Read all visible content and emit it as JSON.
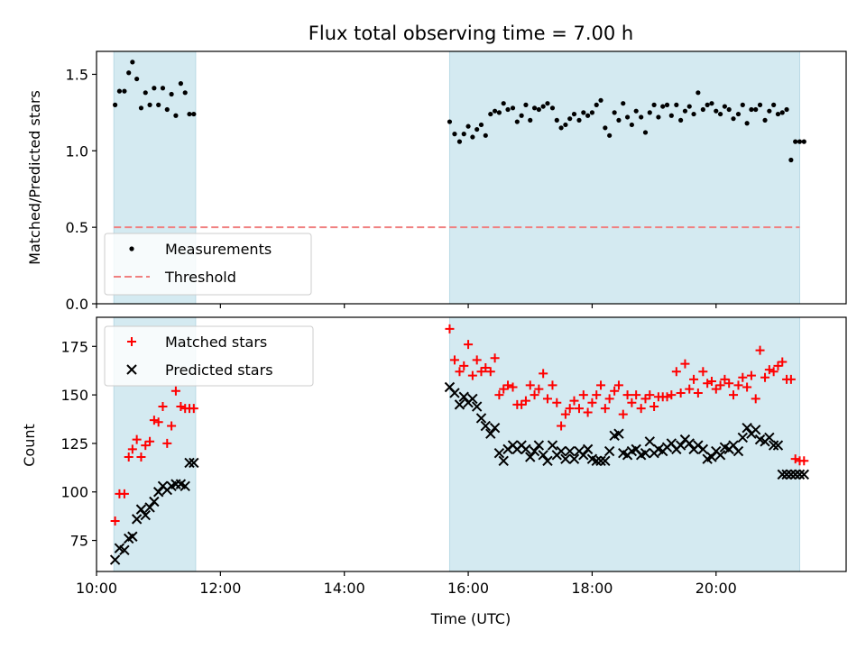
{
  "chart_data": {
    "title": "Flux total observing time = 7.00 h",
    "xlabel": "Time (UTC)",
    "x_unit": "hours (UTC)",
    "xlim": [
      10.0,
      22.1
    ],
    "x_ticks": [
      {
        "value": 10,
        "label": "10:00"
      },
      {
        "value": 12,
        "label": "12:00"
      },
      {
        "value": 14,
        "label": "14:00"
      },
      {
        "value": 16,
        "label": "16:00"
      },
      {
        "value": 18,
        "label": "18:00"
      },
      {
        "value": 20,
        "label": "20:00"
      }
    ],
    "observing_windows": [
      {
        "start": 10.28,
        "end": 11.6,
        "color": "#d4eaf1"
      },
      {
        "start": 15.7,
        "end": 21.35,
        "color": "#d4eaf1"
      }
    ],
    "panels": [
      {
        "type": "scatter",
        "ylabel": "Matched/Predicted stars",
        "ylim": [
          0,
          1.65
        ],
        "y_ticks": [
          0.0,
          0.5,
          1.0,
          1.5
        ],
        "y_tick_labels": [
          "0.0",
          "0.5",
          "1.0",
          "1.5"
        ],
        "legend_position": "lower-left",
        "series": [
          {
            "name": "Measurements",
            "marker": "dot",
            "color": "#000000",
            "x": [
              10.3,
              10.37,
              10.45,
              10.52,
              10.58,
              10.65,
              10.72,
              10.79,
              10.86,
              10.93,
              11.0,
              11.07,
              11.14,
              11.21,
              11.28,
              11.36,
              11.43,
              11.5,
              11.57,
              15.7,
              15.78,
              15.86,
              15.93,
              16.0,
              16.07,
              16.14,
              16.21,
              16.28,
              16.36,
              16.43,
              16.5,
              16.57,
              16.64,
              16.72,
              16.79,
              16.86,
              16.93,
              17.0,
              17.07,
              17.14,
              17.21,
              17.28,
              17.36,
              17.43,
              17.5,
              17.57,
              17.64,
              17.71,
              17.79,
              17.86,
              17.93,
              18.0,
              18.07,
              18.14,
              18.21,
              18.28,
              18.36,
              18.43,
              18.5,
              18.57,
              18.64,
              18.71,
              18.79,
              18.86,
              18.93,
              19.0,
              19.07,
              19.14,
              19.21,
              19.28,
              19.36,
              19.43,
              19.5,
              19.57,
              19.64,
              19.71,
              19.79,
              19.86,
              19.93,
              20.0,
              20.07,
              20.14,
              20.21,
              20.28,
              20.36,
              20.43,
              20.5,
              20.57,
              20.64,
              20.71,
              20.79,
              20.86,
              20.93,
              21.0,
              21.07,
              21.14,
              21.21,
              21.28,
              21.35,
              21.42
            ],
            "y": [
              1.3,
              1.39,
              1.39,
              1.51,
              1.58,
              1.47,
              1.28,
              1.38,
              1.3,
              1.41,
              1.3,
              1.41,
              1.27,
              1.37,
              1.23,
              1.44,
              1.38,
              1.24,
              1.24,
              1.19,
              1.11,
              1.06,
              1.11,
              1.16,
              1.09,
              1.14,
              1.17,
              1.1,
              1.24,
              1.26,
              1.25,
              1.31,
              1.27,
              1.28,
              1.19,
              1.23,
              1.3,
              1.2,
              1.28,
              1.27,
              1.29,
              1.31,
              1.28,
              1.2,
              1.15,
              1.17,
              1.21,
              1.24,
              1.2,
              1.25,
              1.23,
              1.25,
              1.3,
              1.33,
              1.15,
              1.1,
              1.25,
              1.2,
              1.31,
              1.22,
              1.17,
              1.26,
              1.22,
              1.12,
              1.25,
              1.3,
              1.22,
              1.29,
              1.3,
              1.23,
              1.3,
              1.2,
              1.26,
              1.29,
              1.24,
              1.38,
              1.27,
              1.3,
              1.31,
              1.26,
              1.24,
              1.29,
              1.27,
              1.21,
              1.24,
              1.3,
              1.18,
              1.27,
              1.27,
              1.3,
              1.2,
              1.26,
              1.3,
              1.24,
              1.25,
              1.27,
              0.94,
              1.06,
              1.06,
              1.06
            ]
          },
          {
            "name": "Threshold",
            "marker": "dashed-line",
            "color": "#f08080",
            "x": [
              10.28,
              21.35
            ],
            "y": [
              0.5,
              0.5
            ]
          }
        ]
      },
      {
        "type": "scatter",
        "ylabel": "Count",
        "ylim": [
          59,
          190
        ],
        "y_ticks": [
          75,
          100,
          125,
          150,
          175
        ],
        "y_tick_labels": [
          "75",
          "100",
          "125",
          "150",
          "175"
        ],
        "legend_position": "upper-left",
        "series": [
          {
            "name": "Matched stars",
            "marker": "plus",
            "color": "#ff0000",
            "x": [
              10.3,
              10.37,
              10.45,
              10.52,
              10.58,
              10.65,
              10.72,
              10.79,
              10.86,
              10.93,
              11.0,
              11.07,
              11.14,
              11.21,
              11.28,
              11.36,
              11.43,
              11.5,
              11.57,
              15.7,
              15.78,
              15.86,
              15.93,
              16.0,
              16.07,
              16.14,
              16.21,
              16.28,
              16.36,
              16.43,
              16.5,
              16.57,
              16.64,
              16.72,
              16.79,
              16.86,
              16.93,
              17.0,
              17.07,
              17.14,
              17.21,
              17.28,
              17.36,
              17.43,
              17.5,
              17.57,
              17.64,
              17.71,
              17.79,
              17.86,
              17.93,
              18.0,
              18.07,
              18.14,
              18.21,
              18.28,
              18.36,
              18.43,
              18.5,
              18.57,
              18.64,
              18.71,
              18.79,
              18.86,
              18.93,
              19.0,
              19.07,
              19.14,
              19.21,
              19.28,
              19.36,
              19.43,
              19.5,
              19.57,
              19.64,
              19.71,
              19.79,
              19.86,
              19.93,
              20.0,
              20.07,
              20.14,
              20.21,
              20.28,
              20.36,
              20.43,
              20.5,
              20.57,
              20.64,
              20.71,
              20.79,
              20.86,
              20.93,
              21.0,
              21.07,
              21.14,
              21.21,
              21.28,
              21.35,
              21.42
            ],
            "y": [
              85,
              99,
              99,
              118,
              122,
              127,
              118,
              124,
              126,
              137,
              136,
              144,
              125,
              134,
              152,
              144,
              143,
              143,
              143,
              184,
              168,
              162,
              165,
              176,
              160,
              168,
              162,
              164,
              162,
              169,
              150,
              153,
              155,
              154,
              145,
              145,
              147,
              155,
              150,
              153,
              161,
              148,
              155,
              146,
              134,
              140,
              143,
              147,
              143,
              150,
              141,
              146,
              150,
              155,
              143,
              148,
              152,
              155,
              140,
              150,
              146,
              150,
              143,
              148,
              150,
              144,
              149,
              149,
              149,
              150,
              162,
              151,
              166,
              153,
              158,
              151,
              162,
              156,
              157,
              153,
              155,
              158,
              156,
              150,
              155,
              159,
              154,
              160,
              148,
              173,
              159,
              163,
              162,
              165,
              167,
              158,
              158,
              117,
              116,
              116
            ]
          },
          {
            "name": "Predicted stars",
            "marker": "x",
            "color": "#000000",
            "x": [
              10.3,
              10.37,
              10.45,
              10.52,
              10.58,
              10.65,
              10.72,
              10.79,
              10.86,
              10.93,
              11.0,
              11.07,
              11.14,
              11.21,
              11.28,
              11.36,
              11.43,
              11.5,
              11.57,
              15.7,
              15.78,
              15.86,
              15.93,
              16.0,
              16.07,
              16.14,
              16.21,
              16.28,
              16.36,
              16.43,
              16.5,
              16.57,
              16.64,
              16.72,
              16.79,
              16.86,
              16.93,
              17.0,
              17.07,
              17.14,
              17.21,
              17.28,
              17.36,
              17.43,
              17.5,
              17.57,
              17.64,
              17.71,
              17.79,
              17.86,
              17.93,
              18.0,
              18.07,
              18.14,
              18.21,
              18.28,
              18.36,
              18.43,
              18.5,
              18.57,
              18.64,
              18.71,
              18.79,
              18.86,
              18.93,
              19.0,
              19.07,
              19.14,
              19.21,
              19.28,
              19.36,
              19.43,
              19.5,
              19.57,
              19.64,
              19.71,
              19.79,
              19.86,
              19.93,
              20.0,
              20.07,
              20.14,
              20.21,
              20.28,
              20.36,
              20.43,
              20.5,
              20.57,
              20.64,
              20.71,
              20.79,
              20.86,
              20.93,
              21.0,
              21.07,
              21.14,
              21.21,
              21.28,
              21.35,
              21.42
            ],
            "y": [
              65,
              71,
              70,
              76,
              77,
              86,
              91,
              88,
              92,
              95,
              100,
              103,
              101,
              103,
              104,
              104,
              103,
              115,
              115,
              154,
              151,
              145,
              149,
              146,
              148,
              144,
              138,
              134,
              130,
              133,
              120,
              116,
              122,
              124,
              122,
              124,
              122,
              118,
              121,
              124,
              119,
              116,
              124,
              119,
              121,
              117,
              121,
              117,
              121,
              119,
              122,
              117,
              116,
              116,
              116,
              121,
              129,
              130,
              120,
              119,
              121,
              122,
              119,
              120,
              126,
              120,
              122,
              121,
              123,
              125,
              122,
              124,
              127,
              125,
              122,
              124,
              122,
              117,
              118,
              121,
              119,
              123,
              122,
              124,
              121,
              128,
              133,
              130,
              132,
              127,
              126,
              128,
              124,
              124,
              109,
              109,
              109,
              109,
              109,
              109
            ]
          }
        ]
      }
    ]
  }
}
